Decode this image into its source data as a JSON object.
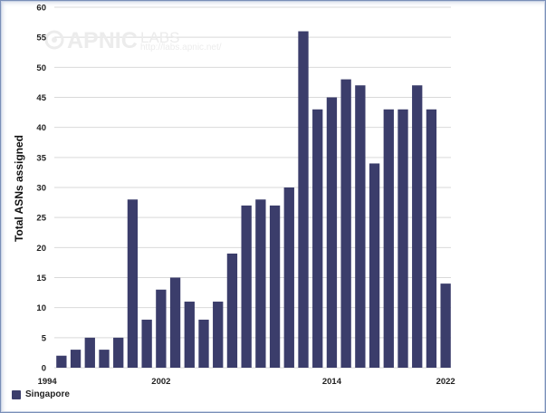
{
  "watermark": {
    "brand": "APNIC",
    "labs": "LABS",
    "url": "http://labs.apnic.net/",
    "icon": "apnic-logo-icon"
  },
  "legend": {
    "label": "Singapore",
    "color": "#3b3d6b"
  },
  "chart_data": {
    "type": "bar",
    "title": "",
    "xlabel": "",
    "ylabel": "Total ASNs assigned",
    "xlim": [
      1994,
      2022
    ],
    "ylim": [
      0,
      60
    ],
    "yticks": [
      0,
      5,
      10,
      15,
      20,
      25,
      30,
      35,
      40,
      45,
      50,
      55,
      60
    ],
    "xticks": [
      1994,
      2002,
      2014,
      2022
    ],
    "grid": true,
    "legend_position": "bottom-left",
    "series": [
      {
        "name": "Singapore",
        "color": "#3b3d6b",
        "x": [
          1995,
          1996,
          1997,
          1998,
          1999,
          2000,
          2001,
          2002,
          2003,
          2004,
          2005,
          2006,
          2007,
          2008,
          2009,
          2010,
          2011,
          2012,
          2013,
          2014,
          2015,
          2016,
          2017,
          2018,
          2019,
          2020,
          2021,
          2022
        ],
        "values": [
          2,
          3,
          5,
          3,
          5,
          28,
          8,
          13,
          15,
          11,
          8,
          11,
          19,
          27,
          28,
          27,
          30,
          56,
          43,
          45,
          48,
          47,
          34,
          43,
          43,
          47,
          43,
          14
        ]
      }
    ]
  }
}
